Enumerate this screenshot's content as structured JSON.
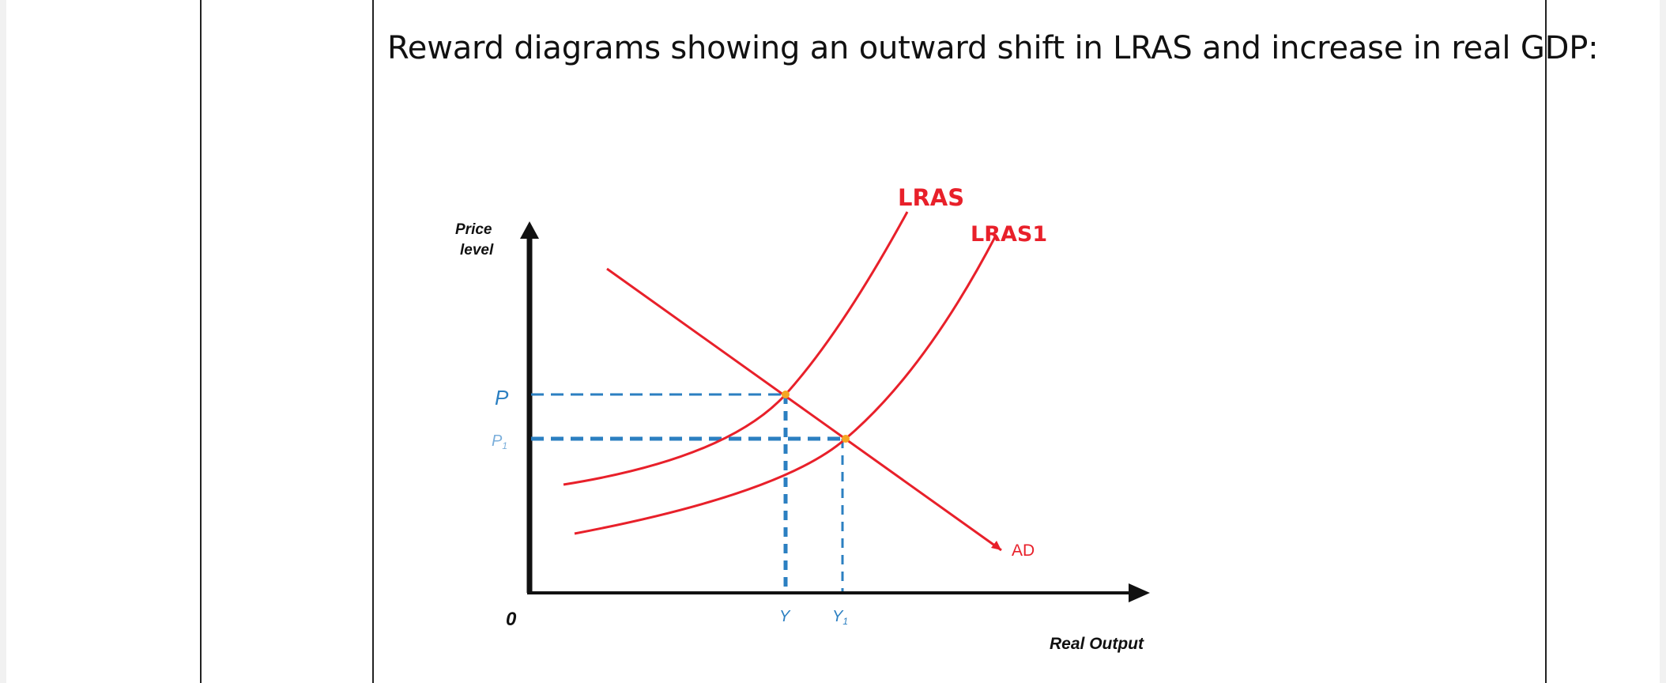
{
  "instruction_text": "Reward diagrams showing an outward shift in LRAS and increase in real GDP:",
  "diagram": {
    "y_axis_label_line1": "Price",
    "y_axis_label_line2": "level",
    "x_axis_label": "Real Output",
    "origin_label": "0",
    "curve_lras_label": "LRAS",
    "curve_lras1_label": "LRAS1",
    "curve_ad_label": "AD",
    "price_p_label": "P",
    "price_p1_label": "P",
    "price_p1_subscript": "1",
    "output_y_label": "Y",
    "output_y1_label": "Y",
    "output_y1_subscript": "1",
    "colors": {
      "curves": "#e8202a",
      "dashed": "#2b7fc1",
      "axis": "#111111",
      "equilibrium": "#f5a623"
    }
  }
}
